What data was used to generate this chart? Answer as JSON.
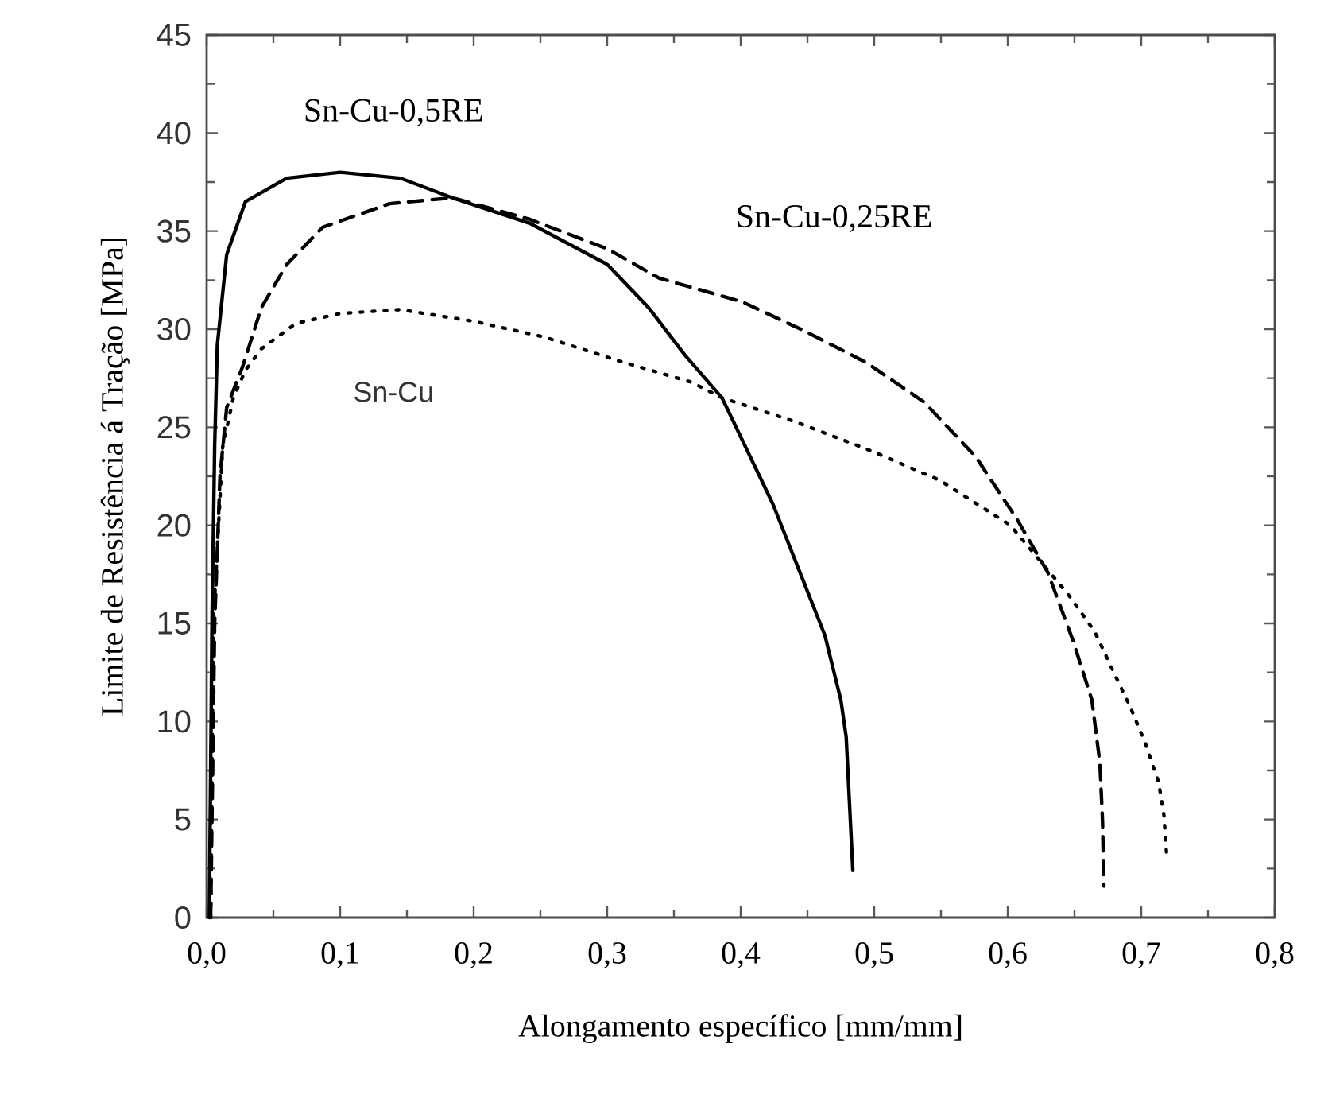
{
  "chart_data": {
    "type": "line",
    "xlabel": "Alongamento específico [mm/mm]",
    "ylabel": "Limite de Resistência á Tração [MPa]",
    "xlim": [
      0,
      0.8
    ],
    "ylim": [
      0,
      45
    ],
    "xticks": [
      {
        "value": 0,
        "label": "0,0"
      },
      {
        "value": 0.1,
        "label": "0,1"
      },
      {
        "value": 0.2,
        "label": "0,2"
      },
      {
        "value": 0.3,
        "label": "0,3"
      },
      {
        "value": 0.4,
        "label": "0,4"
      },
      {
        "value": 0.5,
        "label": "0,5"
      },
      {
        "value": 0.6,
        "label": "0,6"
      },
      {
        "value": 0.7,
        "label": "0,7"
      },
      {
        "value": 0.8,
        "label": "0,8"
      }
    ],
    "yticks": [
      0,
      5,
      10,
      15,
      20,
      25,
      30,
      35,
      40,
      45
    ],
    "grid": false,
    "legend": false,
    "series": [
      {
        "name": "Sn-Cu-0,5RE",
        "color": "#000000",
        "line_style": "solid",
        "x": [
          0.002,
          0.004,
          0.006,
          0.008,
          0.015,
          0.029,
          0.06,
          0.1,
          0.145,
          0.184,
          0.242,
          0.3,
          0.331,
          0.358,
          0.386,
          0.424,
          0.463,
          0.475,
          0.479,
          0.484
        ],
        "values": [
          0,
          15,
          24,
          29.2,
          33.8,
          36.5,
          37.7,
          38,
          37.7,
          36.7,
          35.4,
          33.3,
          31.1,
          28.7,
          26.5,
          21.1,
          14.4,
          11.1,
          9.2,
          2.4
        ]
      },
      {
        "name": "Sn-Cu-0,25RE",
        "color": "#000000",
        "line_style": "dashed",
        "x": [
          0.003,
          0.006,
          0.01,
          0.015,
          0.027,
          0.041,
          0.06,
          0.087,
          0.137,
          0.184,
          0.242,
          0.3,
          0.339,
          0.401,
          0.448,
          0.494,
          0.537,
          0.576,
          0.607,
          0.63,
          0.649,
          0.663,
          0.669,
          0.671,
          0.672
        ],
        "values": [
          0,
          15,
          22.5,
          26,
          28.1,
          31.1,
          33.3,
          35.2,
          36.4,
          36.7,
          35.6,
          34.1,
          32.6,
          31.4,
          29.9,
          28.3,
          26.3,
          23.5,
          20.3,
          17.6,
          14.1,
          11.1,
          7.9,
          4.9,
          1.6
        ]
      },
      {
        "name": "Sn-Cu",
        "color": "#000000",
        "line_style": "dotted",
        "x": [
          0.003,
          0.005,
          0.012,
          0.02,
          0.029,
          0.041,
          0.067,
          0.1,
          0.145,
          0.2,
          0.253,
          0.308,
          0.363,
          0.386,
          0.44,
          0.494,
          0.549,
          0.602,
          0.645,
          0.665,
          0.678,
          0.692,
          0.703,
          0.713,
          0.717,
          0.719
        ],
        "values": [
          0,
          15,
          24,
          26.5,
          27.9,
          29,
          30.3,
          30.8,
          31,
          30.4,
          29.6,
          28.4,
          27.3,
          26.5,
          25.3,
          23.9,
          22.3,
          20,
          16.5,
          14.6,
          12.7,
          10.7,
          8.9,
          6.9,
          5.2,
          3.2
        ]
      }
    ]
  }
}
